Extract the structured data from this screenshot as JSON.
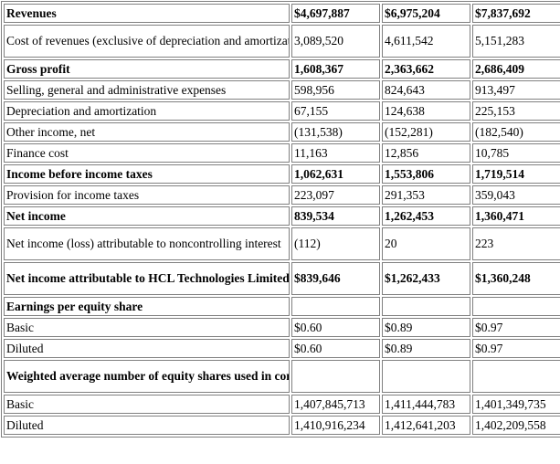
{
  "rows": [
    {
      "label": "Revenues",
      "v": [
        "$4,697,887",
        "$6,975,204",
        "$7,837,692"
      ],
      "bold": true
    },
    {
      "label": "Cost of revenues (exclusive of depreciation and amortization)",
      "v": [
        "3,089,520",
        "4,611,542",
        "5,151,283"
      ],
      "bold": false
    },
    {
      "label": "Gross profit",
      "v": [
        "1,608,367",
        "2,363,662",
        "2,686,409"
      ],
      "bold": true
    },
    {
      "label": "Selling, general and administrative expenses",
      "v": [
        "598,956",
        "824,643",
        "913,497"
      ],
      "bold": false
    },
    {
      "label": "Depreciation and amortization",
      "v": [
        "67,155",
        "124,638",
        "225,153"
      ],
      "bold": false
    },
    {
      "label": "Other income, net",
      "v": [
        "(131,538)",
        "(152,281)",
        "(182,540)"
      ],
      "bold": false
    },
    {
      "label": "Finance cost",
      "v": [
        "11,163",
        "12,856",
        "10,785"
      ],
      "bold": false
    },
    {
      "label": "Income before income taxes",
      "v": [
        "1,062,631",
        "1,553,806",
        "1,719,514"
      ],
      "bold": true
    },
    {
      "label": "Provision for income taxes",
      "v": [
        "223,097",
        "291,353",
        "359,043"
      ],
      "bold": false
    },
    {
      "label": "Net income",
      "v": [
        "839,534",
        "1,262,453",
        "1,360,471"
      ],
      "bold": true
    },
    {
      "label": "Net income (loss) attributable to noncontrolling interest",
      "v": [
        "(112)",
        "20",
        "223"
      ],
      "bold": false
    },
    {
      "label": "Net income attributable to HCL Technologies Limited shareholders",
      "v": [
        "$839,646",
        "$1,262,433",
        "$1,360,248"
      ],
      "bold": true
    },
    {
      "label": "Earnings per equity share",
      "v": [
        "",
        "",
        ""
      ],
      "bold": true
    },
    {
      "label": "Basic",
      "v": [
        "$0.60",
        "$0.89",
        "$0.97"
      ],
      "bold": false
    },
    {
      "label": "Diluted",
      "v": [
        "$0.60",
        "$0.89",
        "$0.97"
      ],
      "bold": false
    },
    {
      "label": "Weighted average number of equity shares used in computing earnings per equity share",
      "v": [
        "",
        "",
        ""
      ],
      "bold": true
    },
    {
      "label": "Basic",
      "v": [
        "1,407,845,713",
        "1,411,444,783",
        "1,401,349,735"
      ],
      "bold": false
    },
    {
      "label": "Diluted",
      "v": [
        "1,410,916,234",
        "1,412,641,203",
        "1,402,209,558"
      ],
      "bold": false
    }
  ]
}
